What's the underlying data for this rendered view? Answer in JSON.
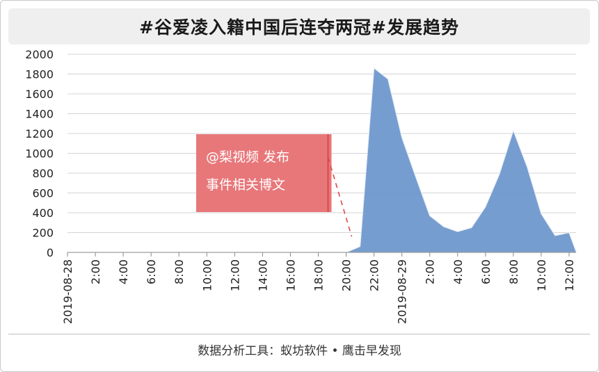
{
  "title": "#谷爱凌入籍中国后连夺两冠#发展趋势",
  "footer": "数据分析工具：蚁坊软件 • 鹰击早发现",
  "chart_data": {
    "type": "area",
    "ylim": [
      0,
      2000
    ],
    "yticks": [
      0,
      200,
      400,
      600,
      800,
      1000,
      1200,
      1400,
      1600,
      1800,
      2000
    ],
    "x_tick_labels": [
      "2019-08-28",
      "2:00",
      "4:00",
      "6:00",
      "8:00",
      "10:00",
      "12:00",
      "14:00",
      "16:00",
      "18:00",
      "20:00",
      "22:00",
      "2019-08-29",
      "2:00",
      "4:00",
      "6:00",
      "8:00",
      "10:00",
      "12:00"
    ],
    "x_hours": [
      0,
      2,
      4,
      6,
      8,
      10,
      12,
      14,
      16,
      18,
      20,
      22,
      24,
      26,
      28,
      30,
      32,
      34,
      36
    ],
    "series": [
      {
        "x_hours": [
          0,
          1,
          2,
          3,
          4,
          5,
          6,
          7,
          8,
          9,
          10,
          11,
          12,
          13,
          14,
          15,
          16,
          17,
          18,
          19,
          20,
          21,
          22,
          23,
          24,
          25,
          26,
          27,
          28,
          29,
          30,
          31,
          32,
          33,
          34,
          35,
          36,
          36.5
        ],
        "values": [
          0,
          0,
          0,
          0,
          0,
          0,
          0,
          0,
          0,
          0,
          0,
          0,
          0,
          0,
          0,
          0,
          0,
          0,
          0,
          0,
          0,
          60,
          1860,
          1750,
          1160,
          760,
          370,
          260,
          210,
          250,
          460,
          790,
          1230,
          860,
          390,
          170,
          200,
          10
        ],
        "color": "#6f98cc"
      }
    ],
    "annotation": {
      "lines": [
        "@梨视频 发布",
        "事件相关博文"
      ],
      "box_color": "#e8777a",
      "line_color": "#d94a4a",
      "x_hours": 18.7,
      "value": 20
    },
    "grid": true
  }
}
